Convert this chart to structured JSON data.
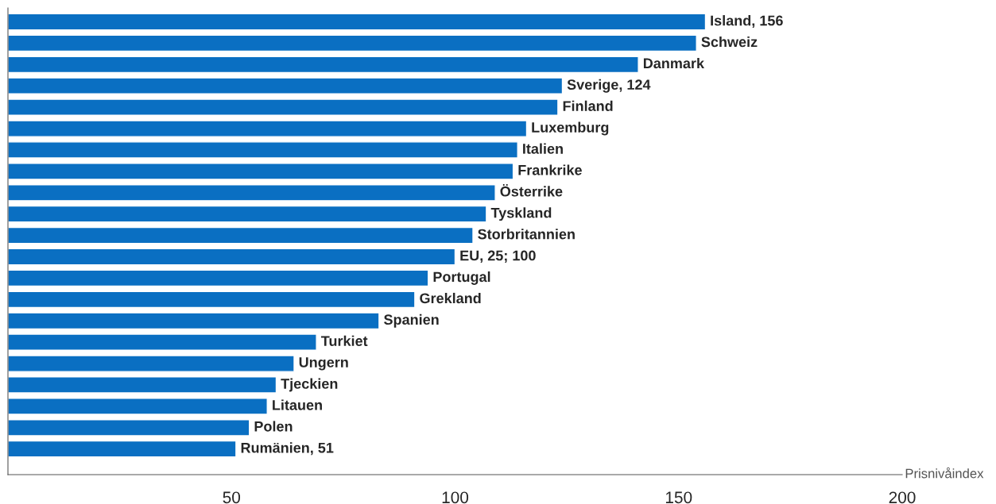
{
  "chart_data": {
    "type": "bar",
    "orientation": "horizontal",
    "xlabel": "Prisnivåindex",
    "categories": [
      "Island, 156",
      "Schweiz",
      "Danmark",
      "Sverige, 124",
      "Finland",
      "Luxemburg",
      "Italien",
      "Frankrike",
      "Österrike",
      "Tyskland",
      "Storbritannien",
      "EU, 25; 100",
      "Portugal",
      "Grekland",
      "Spanien",
      "Turkiet",
      "Ungern",
      "Tjeckien",
      "Litauen",
      "Polen",
      "Rumänien, 51"
    ],
    "values": [
      156,
      154,
      141,
      124,
      123,
      116,
      114,
      113,
      109,
      107,
      104,
      100,
      94,
      91,
      83,
      69,
      64,
      60,
      58,
      54,
      51
    ],
    "color": "#0a6fc2",
    "xlim": [
      0,
      200
    ],
    "xticks": [
      50,
      100,
      150,
      200
    ],
    "grid": false,
    "legend": false
  }
}
